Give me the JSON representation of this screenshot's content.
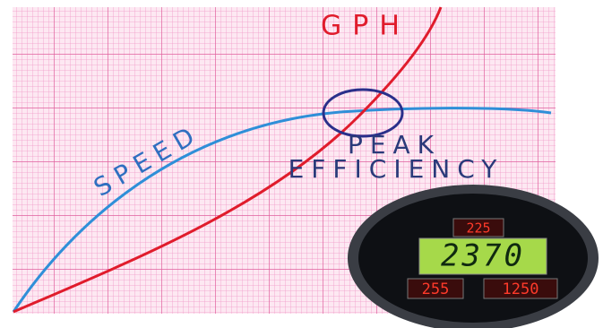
{
  "graph": {
    "gph_label": "GPH",
    "speed_label": "SPEED",
    "peak_label": "PEAK",
    "efficiency_label": "EFFICIENCY"
  },
  "gauge": {
    "top_display": "225",
    "main_display": "2370",
    "left_display": "255",
    "right_display": "1250"
  }
}
